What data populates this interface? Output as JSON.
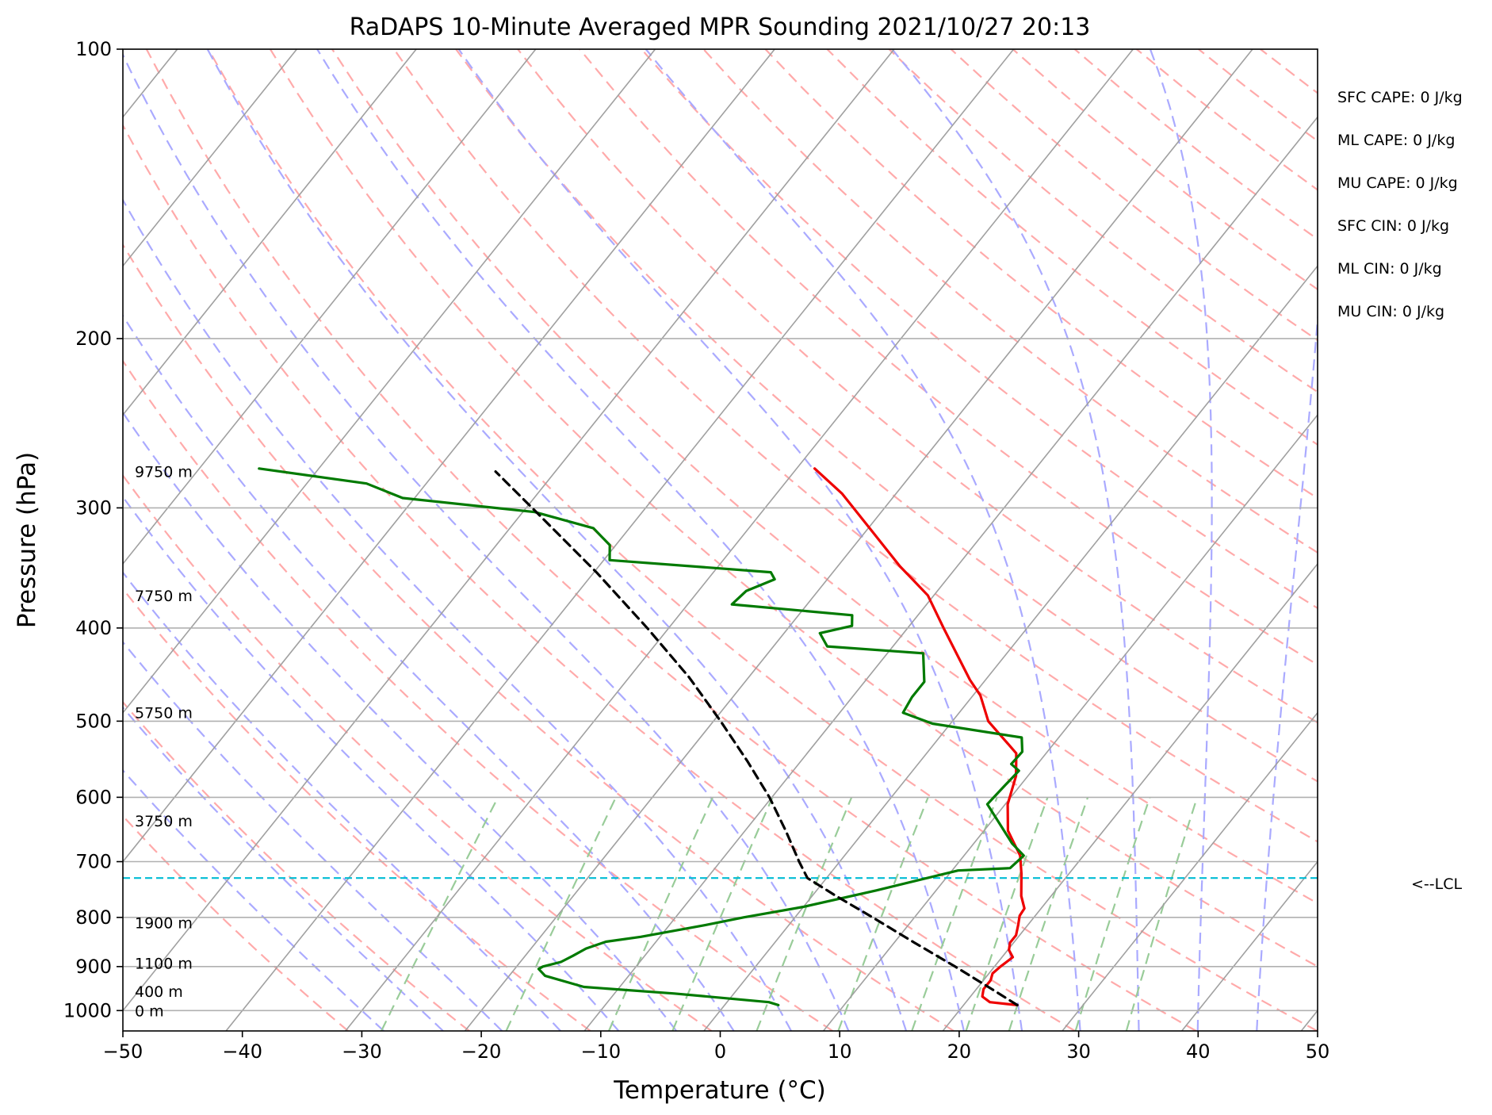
{
  "chart_data": {
    "type": "line",
    "title": "RaDAPS 10-Minute Averaged MPR Sounding 2021/10/27 20:13",
    "xlabel": "Temperature (°C)",
    "ylabel": "Pressure (hPa)",
    "xlim": [
      -50,
      50
    ],
    "ylim": [
      1050,
      100
    ],
    "y_scale": "log",
    "x_ticks": [
      "−50",
      "−40",
      "−30",
      "−20",
      "−10",
      "0",
      "10",
      "20",
      "30",
      "40",
      "50"
    ],
    "x_tick_values": [
      -50,
      -40,
      -30,
      -20,
      -10,
      0,
      10,
      20,
      30,
      40,
      50
    ],
    "y_ticks": [
      "100",
      "200",
      "300",
      "400",
      "500",
      "600",
      "700",
      "800",
      "900",
      "1000"
    ],
    "y_tick_values": [
      100,
      200,
      300,
      400,
      500,
      600,
      700,
      800,
      900,
      1000
    ],
    "grid": true,
    "colors": {
      "temperature": "#ee0000",
      "dewpoint": "#007a00",
      "parcel": "#000000",
      "lcl": "#00bcd4",
      "isotherm": "#a0a0a0",
      "dry_adiabat": "#ffaaaa",
      "moist_adiabat": "#aaaaff",
      "mixing_ratio": "#99cc99"
    },
    "series": [
      {
        "key": "temperature",
        "points": [
          {
            "p": 987,
            "t": 24.5
          },
          {
            "p": 980,
            "t": 22.0
          },
          {
            "p": 967,
            "t": 21.0
          },
          {
            "p": 950,
            "t": 20.6
          },
          {
            "p": 930,
            "t": 20.6
          },
          {
            "p": 915,
            "t": 20.3
          },
          {
            "p": 900,
            "t": 20.5
          },
          {
            "p": 880,
            "t": 20.9
          },
          {
            "p": 865,
            "t": 20.1
          },
          {
            "p": 850,
            "t": 19.7
          },
          {
            "p": 835,
            "t": 19.7
          },
          {
            "p": 815,
            "t": 19.2
          },
          {
            "p": 797,
            "t": 18.7
          },
          {
            "p": 783,
            "t": 18.6
          },
          {
            "p": 760,
            "t": 17.5
          },
          {
            "p": 720,
            "t": 16.0
          },
          {
            "p": 690,
            "t": 14.7
          },
          {
            "p": 650,
            "t": 12.0
          },
          {
            "p": 610,
            "t": 10.2
          },
          {
            "p": 570,
            "t": 9.0
          },
          {
            "p": 540,
            "t": 7.5
          },
          {
            "p": 500,
            "t": 3.0
          },
          {
            "p": 470,
            "t": 0.6
          },
          {
            "p": 453,
            "t": -1.3
          },
          {
            "p": 400,
            "t": -7.0
          },
          {
            "p": 370,
            "t": -10.5
          },
          {
            "p": 345,
            "t": -14.8
          },
          {
            "p": 320,
            "t": -19.0
          },
          {
            "p": 290,
            "t": -24.5
          },
          {
            "p": 273,
            "t": -28.5
          }
        ]
      },
      {
        "key": "dewpoint",
        "points": [
          {
            "p": 987,
            "t": 4.5
          },
          {
            "p": 980,
            "t": 3.5
          },
          {
            "p": 960,
            "t": -5.0
          },
          {
            "p": 945,
            "t": -13.0
          },
          {
            "p": 920,
            "t": -17.0
          },
          {
            "p": 905,
            "t": -18.0
          },
          {
            "p": 900,
            "t": -17.8
          },
          {
            "p": 890,
            "t": -16.6
          },
          {
            "p": 877,
            "t": -16.0
          },
          {
            "p": 862,
            "t": -15.4
          },
          {
            "p": 848,
            "t": -14.2
          },
          {
            "p": 838,
            "t": -11.6
          },
          {
            "p": 815,
            "t": -7.0
          },
          {
            "p": 800,
            "t": -4.3
          },
          {
            "p": 780,
            "t": 0.0
          },
          {
            "p": 750,
            "t": 5.0
          },
          {
            "p": 715,
            "t": 10.5
          },
          {
            "p": 711,
            "t": 14.7
          },
          {
            "p": 690,
            "t": 15.0
          },
          {
            "p": 670,
            "t": 13.2
          },
          {
            "p": 610,
            "t": 8.5
          },
          {
            "p": 585,
            "t": 8.7
          },
          {
            "p": 563,
            "t": 8.9
          },
          {
            "p": 554,
            "t": 7.8
          },
          {
            "p": 538,
            "t": 7.9
          },
          {
            "p": 520,
            "t": 6.9
          },
          {
            "p": 503,
            "t": -1.5
          },
          {
            "p": 490,
            "t": -4.7
          },
          {
            "p": 472,
            "t": -5.0
          },
          {
            "p": 455,
            "t": -5.0
          },
          {
            "p": 425,
            "t": -7.0
          },
          {
            "p": 418,
            "t": -15.5
          },
          {
            "p": 405,
            "t": -17.0
          },
          {
            "p": 398,
            "t": -14.8
          },
          {
            "p": 388,
            "t": -15.5
          },
          {
            "p": 378,
            "t": -26.3
          },
          {
            "p": 366,
            "t": -26.0
          },
          {
            "p": 356,
            "t": -24.4
          },
          {
            "p": 350,
            "t": -25.2
          },
          {
            "p": 340,
            "t": -39.5
          },
          {
            "p": 328,
            "t": -40.5
          },
          {
            "p": 315,
            "t": -43.0
          },
          {
            "p": 303,
            "t": -49.0
          },
          {
            "p": 293,
            "t": -61.0
          },
          {
            "p": 283,
            "t": -65.0
          },
          {
            "p": 273,
            "t": -75.0
          }
        ]
      },
      {
        "key": "parcel",
        "points": [
          {
            "p": 987,
            "t": 24.5
          },
          {
            "p": 950,
            "t": 21.3
          },
          {
            "p": 900,
            "t": 16.7
          },
          {
            "p": 850,
            "t": 11.7
          },
          {
            "p": 800,
            "t": 6.5
          },
          {
            "p": 760,
            "t": 2.0
          },
          {
            "p": 728,
            "t": -1.6
          },
          {
            "p": 700,
            "t": -3.4
          },
          {
            "p": 650,
            "t": -6.6
          },
          {
            "p": 600,
            "t": -10.2
          },
          {
            "p": 550,
            "t": -14.5
          },
          {
            "p": 500,
            "t": -19.4
          },
          {
            "p": 450,
            "t": -25.0
          },
          {
            "p": 400,
            "t": -31.8
          },
          {
            "p": 350,
            "t": -39.8
          },
          {
            "p": 300,
            "t": -49.5
          },
          {
            "p": 275,
            "t": -55.0
          }
        ]
      }
    ],
    "lcl": {
      "p": 728,
      "label": "<--LCL"
    },
    "height_labels": [
      {
        "p": 275,
        "text": "9750 m"
      },
      {
        "p": 370,
        "text": "7750 m"
      },
      {
        "p": 490,
        "text": "5750 m"
      },
      {
        "p": 635,
        "text": "3750 m"
      },
      {
        "p": 810,
        "text": "1900 m"
      },
      {
        "p": 893,
        "text": "1100 m"
      },
      {
        "p": 955,
        "text": "400 m"
      },
      {
        "p": 1000,
        "text": "0 m"
      }
    ],
    "stats": [
      "SFC CAPE: 0 J/kg",
      "ML CAPE: 0 J/kg",
      "MU CAPE: 0 J/kg",
      "SFC CIN: 0 J/kg",
      "ML CIN: 0 J/kg",
      "MU CIN: 0 J/kg"
    ]
  }
}
